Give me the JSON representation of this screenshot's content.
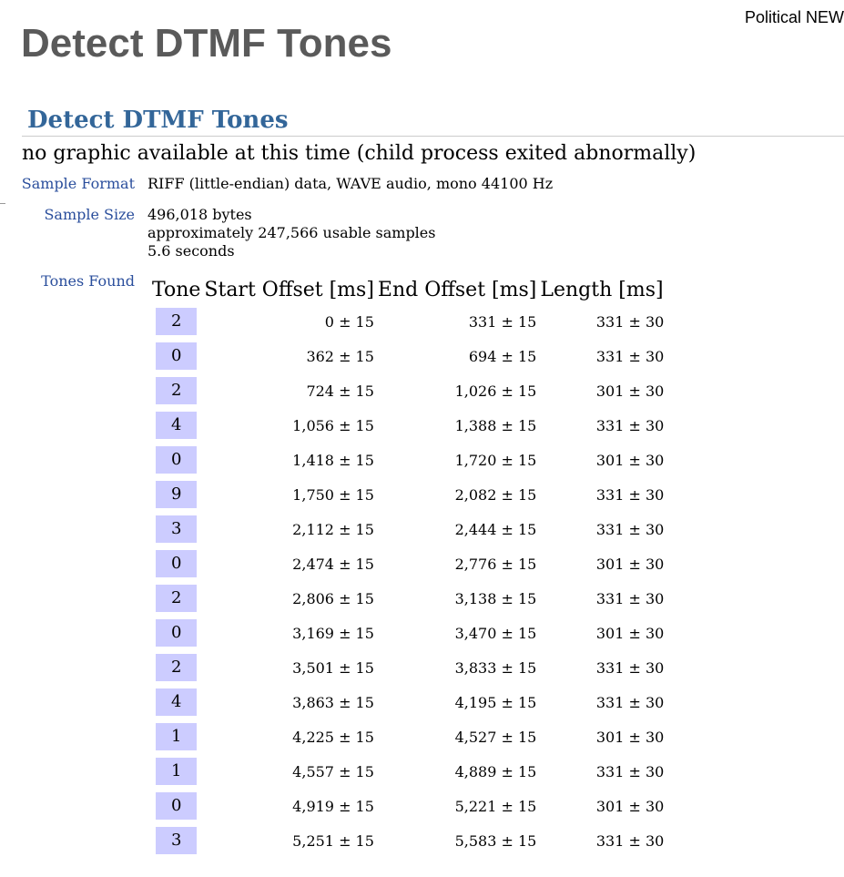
{
  "header": {
    "top_link": "Political NEW",
    "page_title": "Detect DTMF Tones"
  },
  "section": {
    "title": "Detect DTMF Tones",
    "no_graphic_message": "no graphic available at this time (child process exited abnormally)"
  },
  "info": {
    "sample_format_label": "Sample Format",
    "sample_format_value": "RIFF (little-endian) data, WAVE audio, mono 44100 Hz",
    "sample_size_label": "Sample Size",
    "sample_size_bytes": "496,018 bytes",
    "sample_size_samples": "approximately 247,566 usable samples",
    "sample_size_seconds": "5.6 seconds",
    "tones_found_label": "Tones Found"
  },
  "tones_table": {
    "headers": [
      "Tone",
      "Start Offset [ms]",
      "End Offset [ms]",
      "Length [ms]"
    ],
    "rows": [
      {
        "tone": "2",
        "start": "0 ± 15",
        "end": "331 ± 15",
        "length": "331 ± 30"
      },
      {
        "tone": "0",
        "start": "362 ± 15",
        "end": "694 ± 15",
        "length": "331 ± 30"
      },
      {
        "tone": "2",
        "start": "724 ± 15",
        "end": "1,026 ± 15",
        "length": "301 ± 30"
      },
      {
        "tone": "4",
        "start": "1,056 ± 15",
        "end": "1,388 ± 15",
        "length": "331 ± 30"
      },
      {
        "tone": "0",
        "start": "1,418 ± 15",
        "end": "1,720 ± 15",
        "length": "301 ± 30"
      },
      {
        "tone": "9",
        "start": "1,750 ± 15",
        "end": "2,082 ± 15",
        "length": "331 ± 30"
      },
      {
        "tone": "3",
        "start": "2,112 ± 15",
        "end": "2,444 ± 15",
        "length": "331 ± 30"
      },
      {
        "tone": "0",
        "start": "2,474 ± 15",
        "end": "2,776 ± 15",
        "length": "301 ± 30"
      },
      {
        "tone": "2",
        "start": "2,806 ± 15",
        "end": "3,138 ± 15",
        "length": "331 ± 30"
      },
      {
        "tone": "0",
        "start": "3,169 ± 15",
        "end": "3,470 ± 15",
        "length": "301 ± 30"
      },
      {
        "tone": "2",
        "start": "3,501 ± 15",
        "end": "3,833 ± 15",
        "length": "331 ± 30"
      },
      {
        "tone": "4",
        "start": "3,863 ± 15",
        "end": "4,195 ± 15",
        "length": "331 ± 30"
      },
      {
        "tone": "1",
        "start": "4,225 ± 15",
        "end": "4,527 ± 15",
        "length": "301 ± 30"
      },
      {
        "tone": "1",
        "start": "4,557 ± 15",
        "end": "4,889 ± 15",
        "length": "331 ± 30"
      },
      {
        "tone": "0",
        "start": "4,919 ± 15",
        "end": "5,221 ± 15",
        "length": "301 ± 30"
      },
      {
        "tone": "3",
        "start": "5,251 ± 15",
        "end": "5,583 ± 15",
        "length": "331 ± 30"
      }
    ]
  },
  "colors": {
    "page_title": "#5a5a5a",
    "section_title": "#336699",
    "label": "#2a4e9c",
    "tone_key_bg": "#ccccff"
  }
}
